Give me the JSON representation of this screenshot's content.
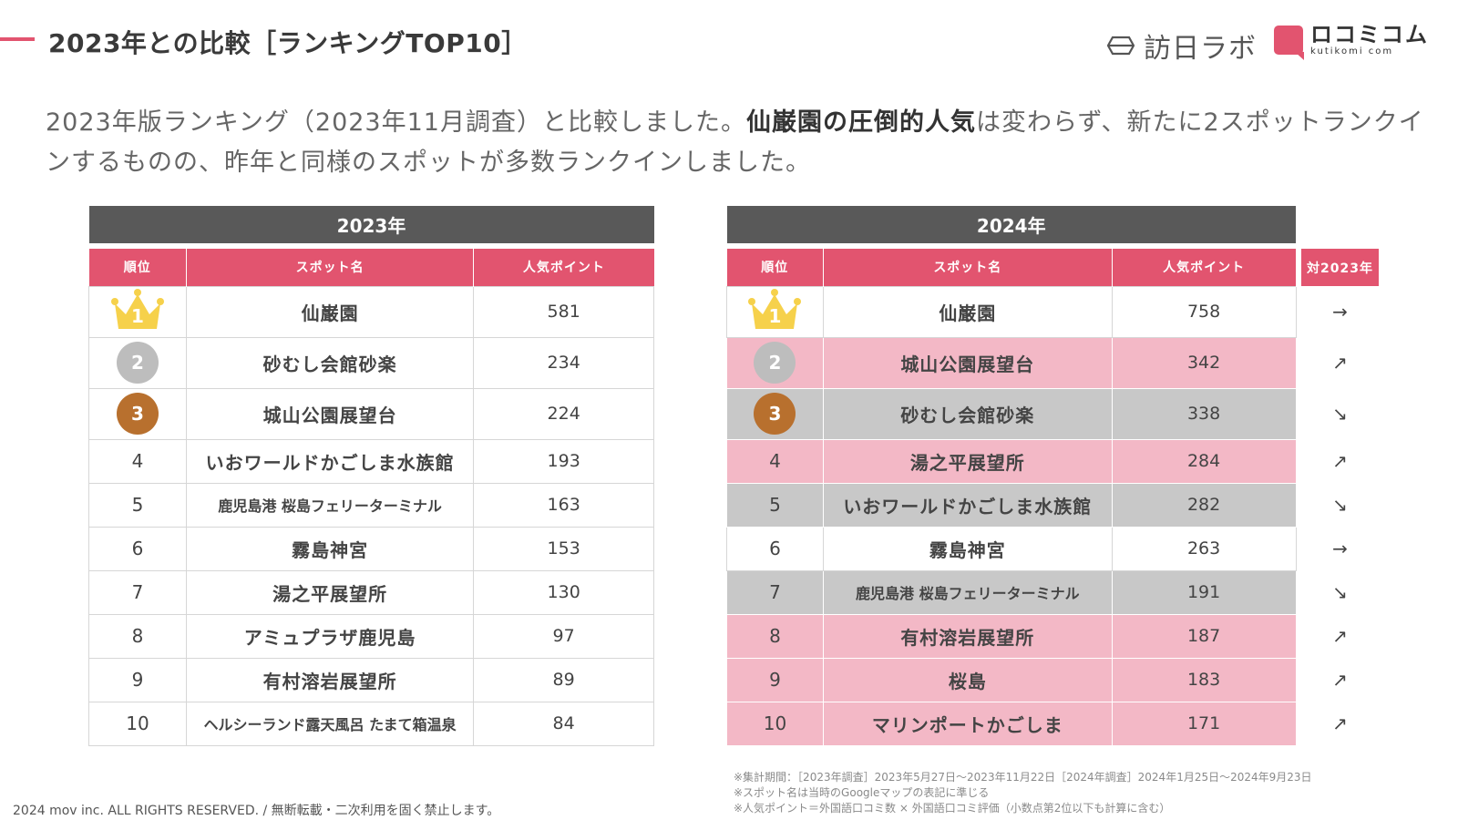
{
  "title": "2023年との比較［ランキングTOP10］",
  "colors": {
    "accent": "#e2546f",
    "header_gray": "#595959",
    "up_row": "#f3b8c6",
    "down_row": "#c8c8c8"
  },
  "logos": {
    "houjin": "訪日ラボ",
    "kuchikomi_ja": "ロコミコム",
    "kuchikomi_en": "kutikomi com"
  },
  "intro": {
    "part1": "2023年版ランキング（2023年11月調査）と比較しました。",
    "bold": "仙巌園の圧倒的人気",
    "part2": "は変わらず、新たに2スポットランクインするものの、昨年と同様のスポットが多数ランクインしました。"
  },
  "table_2023": {
    "year_label": "2023年",
    "headers": [
      "順位",
      "スポット名",
      "人気ポイント"
    ],
    "rows": [
      {
        "rank": "1",
        "spot": "仙巌園",
        "points": "581"
      },
      {
        "rank": "2",
        "spot": "砂むし会館砂楽",
        "points": "234"
      },
      {
        "rank": "3",
        "spot": "城山公園展望台",
        "points": "224"
      },
      {
        "rank": "4",
        "spot": "いおワールドかごしま水族館",
        "points": "193"
      },
      {
        "rank": "5",
        "spot": "鹿児島港 桜島フェリーターミナル",
        "points": "163"
      },
      {
        "rank": "6",
        "spot": "霧島神宮",
        "points": "153"
      },
      {
        "rank": "7",
        "spot": "湯之平展望所",
        "points": "130"
      },
      {
        "rank": "8",
        "spot": "アミュプラザ鹿児島",
        "points": "97"
      },
      {
        "rank": "9",
        "spot": "有村溶岩展望所",
        "points": "89"
      },
      {
        "rank": "10",
        "spot": "ヘルシーランド露天風呂 たまて箱温泉",
        "points": "84"
      }
    ]
  },
  "table_2024": {
    "year_label": "2024年",
    "headers": [
      "順位",
      "スポット名",
      "人気ポイント",
      "対2023年"
    ],
    "rows": [
      {
        "rank": "1",
        "spot": "仙巌園",
        "points": "758",
        "trend": "→",
        "state": "same"
      },
      {
        "rank": "2",
        "spot": "城山公園展望台",
        "points": "342",
        "trend": "↗",
        "state": "up"
      },
      {
        "rank": "3",
        "spot": "砂むし会館砂楽",
        "points": "338",
        "trend": "↘",
        "state": "down"
      },
      {
        "rank": "4",
        "spot": "湯之平展望所",
        "points": "284",
        "trend": "↗",
        "state": "up"
      },
      {
        "rank": "5",
        "spot": "いおワールドかごしま水族館",
        "points": "282",
        "trend": "↘",
        "state": "down"
      },
      {
        "rank": "6",
        "spot": "霧島神宮",
        "points": "263",
        "trend": "→",
        "state": "same"
      },
      {
        "rank": "7",
        "spot": "鹿児島港 桜島フェリーターミナル",
        "points": "191",
        "trend": "↘",
        "state": "down"
      },
      {
        "rank": "8",
        "spot": "有村溶岩展望所",
        "points": "187",
        "trend": "↗",
        "state": "up"
      },
      {
        "rank": "9",
        "spot": "桜島",
        "points": "183",
        "trend": "↗",
        "state": "up"
      },
      {
        "rank": "10",
        "spot": "マリンポートかごしま",
        "points": "171",
        "trend": "↗",
        "state": "up"
      }
    ]
  },
  "notes": [
    "※集計期間：［2023年調査］2023年5月27日〜2023年11月22日［2024年調査］2024年1月25日〜2024年9月23日",
    "※スポット名は当時のGoogleマップの表記に準じる",
    "※人気ポイント＝外国語口コミ数 × 外国語口コミ評価（小数点第2位以下も計算に含む）"
  ],
  "footer": "2024 mov inc. ALL RIGHTS RESERVED. / 無断転載・二次利用を固く禁止します。"
}
